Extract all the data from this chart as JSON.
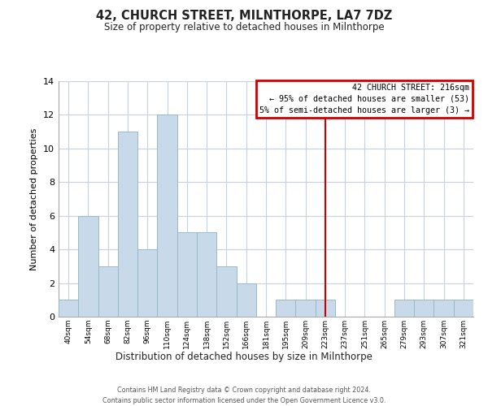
{
  "title": "42, CHURCH STREET, MILNTHORPE, LA7 7DZ",
  "subtitle": "Size of property relative to detached houses in Milnthorpe",
  "xlabel": "Distribution of detached houses by size in Milnthorpe",
  "ylabel": "Number of detached properties",
  "bin_labels": [
    "40sqm",
    "54sqm",
    "68sqm",
    "82sqm",
    "96sqm",
    "110sqm",
    "124sqm",
    "138sqm",
    "152sqm",
    "166sqm",
    "181sqm",
    "195sqm",
    "209sqm",
    "223sqm",
    "237sqm",
    "251sqm",
    "265sqm",
    "279sqm",
    "293sqm",
    "307sqm",
    "321sqm"
  ],
  "bar_heights": [
    1,
    6,
    3,
    11,
    4,
    12,
    5,
    5,
    3,
    2,
    0,
    1,
    1,
    1,
    0,
    0,
    0,
    1,
    1,
    1,
    1
  ],
  "bar_color": "#c8daea",
  "bar_edge_color": "#9ab8cc",
  "vline_color": "#cc0000",
  "vline_pos": 13.5,
  "annotation_title": "42 CHURCH STREET: 216sqm",
  "annotation_line1": "← 95% of detached houses are smaller (53)",
  "annotation_line2": "5% of semi-detached houses are larger (3) →",
  "annotation_box_color": "#cc0000",
  "ylim": [
    0,
    14
  ],
  "yticks": [
    0,
    2,
    4,
    6,
    8,
    10,
    12,
    14
  ],
  "footnote1": "Contains HM Land Registry data © Crown copyright and database right 2024.",
  "footnote2": "Contains public sector information licensed under the Open Government Licence v3.0.",
  "background_color": "#ffffff",
  "grid_color": "#c8d0dc"
}
